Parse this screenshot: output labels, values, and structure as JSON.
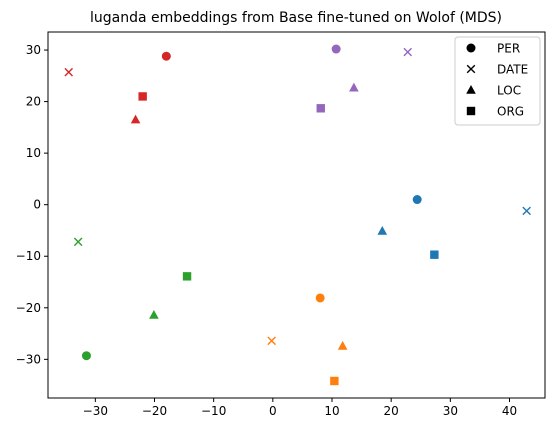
{
  "chart_data": {
    "type": "scatter",
    "title": "luganda embeddings from Base fine-tuned on Wolof (MDS)",
    "xlabel": "",
    "ylabel": "",
    "xlim": [
      -38,
      46
    ],
    "ylim": [
      -37.5,
      33.5
    ],
    "xticks": [
      -30,
      -20,
      -10,
      0,
      10,
      20,
      30,
      40
    ],
    "yticks": [
      -30,
      -20,
      -10,
      0,
      10,
      20,
      30
    ],
    "grid": false,
    "legend_position": "top-right",
    "legend": [
      {
        "label": "PER",
        "marker": "circle"
      },
      {
        "label": "DATE",
        "marker": "x"
      },
      {
        "label": "LOC",
        "marker": "triangle"
      },
      {
        "label": "ORG",
        "marker": "square"
      }
    ],
    "points": [
      {
        "x": -18.0,
        "y": 28.8,
        "marker": "circle",
        "color": "#d62728"
      },
      {
        "x": -34.5,
        "y": 25.7,
        "marker": "x",
        "color": "#d62728"
      },
      {
        "x": -23.2,
        "y": 16.5,
        "marker": "triangle",
        "color": "#d62728"
      },
      {
        "x": -22.0,
        "y": 21.0,
        "marker": "square",
        "color": "#d62728"
      },
      {
        "x": 10.7,
        "y": 30.2,
        "marker": "circle",
        "color": "#9467bd"
      },
      {
        "x": 22.8,
        "y": 29.6,
        "marker": "x",
        "color": "#9467bd"
      },
      {
        "x": 13.7,
        "y": 22.7,
        "marker": "triangle",
        "color": "#9467bd"
      },
      {
        "x": 8.1,
        "y": 18.7,
        "marker": "square",
        "color": "#9467bd"
      },
      {
        "x": 24.4,
        "y": 1.0,
        "marker": "circle",
        "color": "#1f77b4"
      },
      {
        "x": 42.9,
        "y": -1.2,
        "marker": "x",
        "color": "#1f77b4"
      },
      {
        "x": 18.5,
        "y": -5.1,
        "marker": "triangle",
        "color": "#1f77b4"
      },
      {
        "x": 27.3,
        "y": -9.7,
        "marker": "square",
        "color": "#1f77b4"
      },
      {
        "x": -31.5,
        "y": -29.3,
        "marker": "circle",
        "color": "#2ca02c"
      },
      {
        "x": -32.9,
        "y": -7.2,
        "marker": "x",
        "color": "#2ca02c"
      },
      {
        "x": -20.1,
        "y": -21.4,
        "marker": "triangle",
        "color": "#2ca02c"
      },
      {
        "x": -14.5,
        "y": -13.9,
        "marker": "square",
        "color": "#2ca02c"
      },
      {
        "x": 8.0,
        "y": -18.1,
        "marker": "circle",
        "color": "#ff7f0e"
      },
      {
        "x": -0.2,
        "y": -26.4,
        "marker": "x",
        "color": "#ff7f0e"
      },
      {
        "x": 11.8,
        "y": -27.4,
        "marker": "triangle",
        "color": "#ff7f0e"
      },
      {
        "x": 10.4,
        "y": -34.2,
        "marker": "square",
        "color": "#ff7f0e"
      }
    ]
  }
}
